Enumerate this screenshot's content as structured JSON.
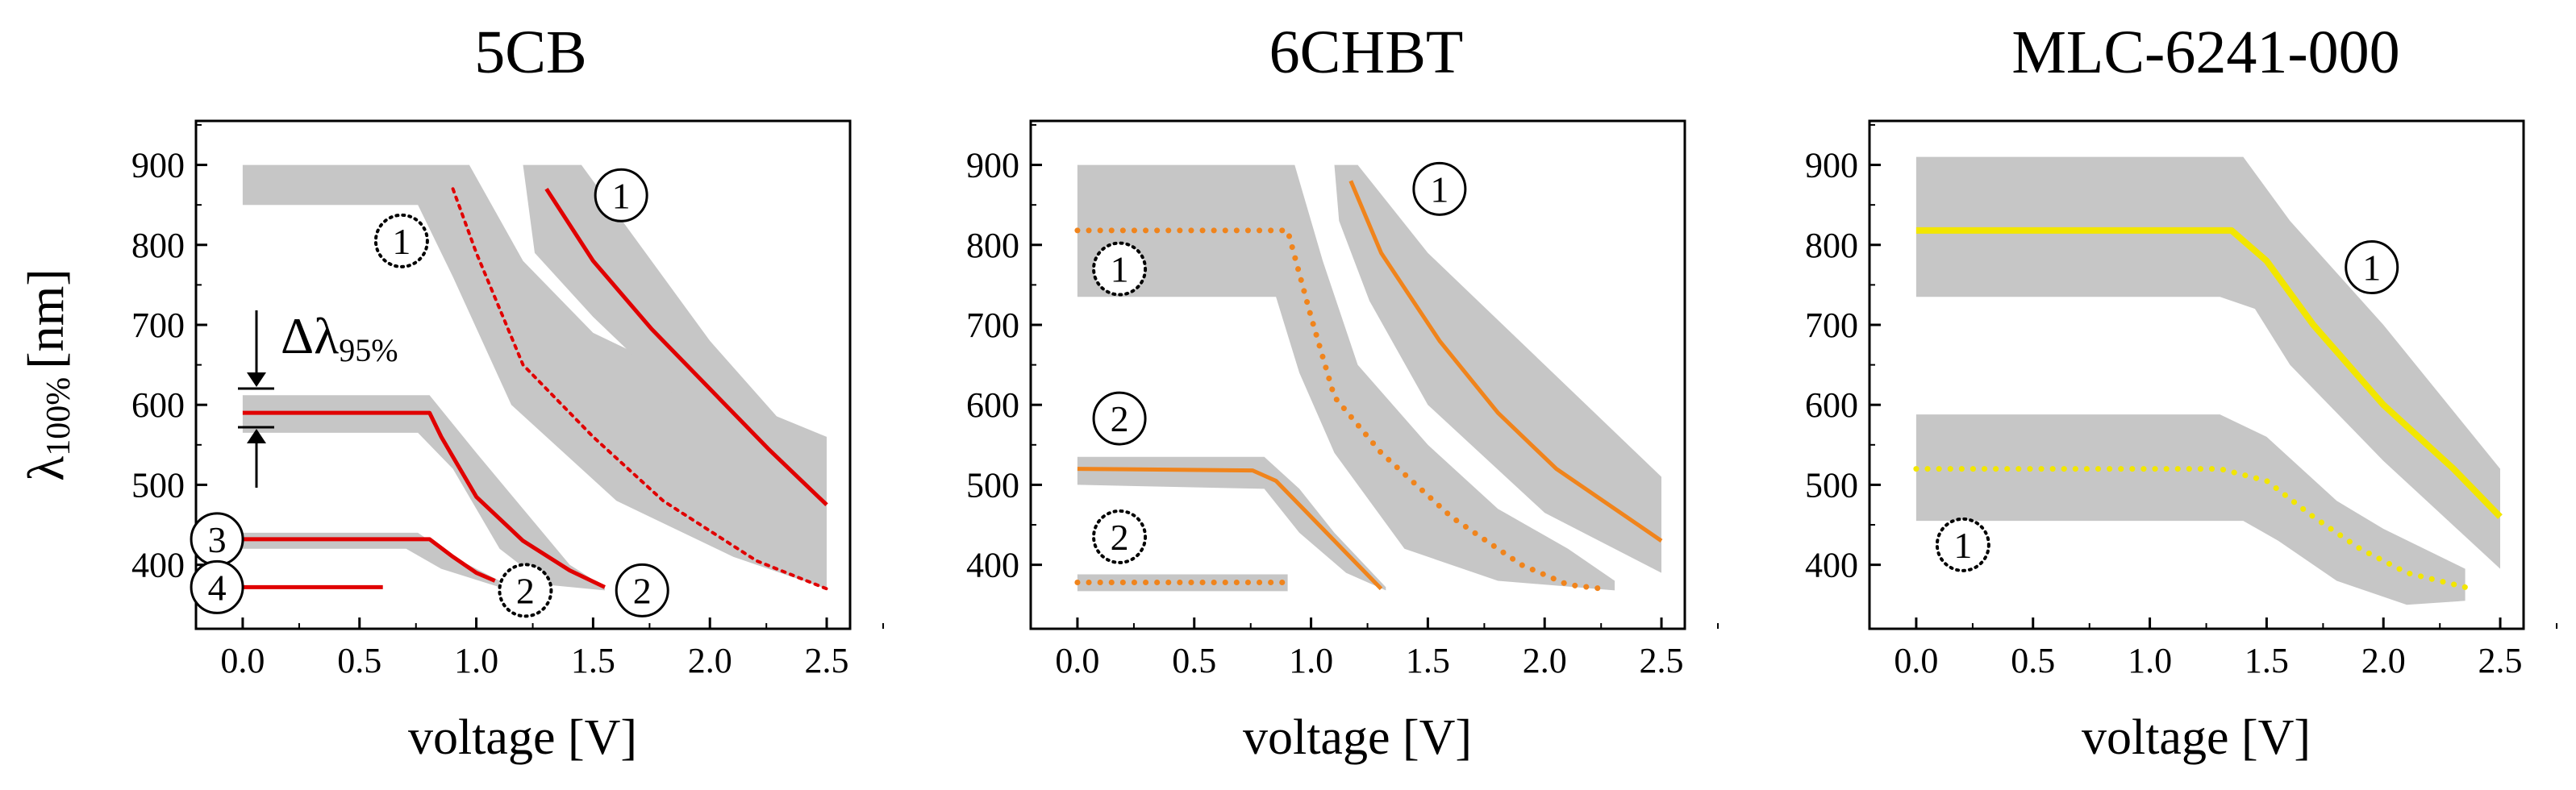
{
  "figure": {
    "ylabel_main": "λ",
    "ylabel_sub": "100%",
    "ylabel_unit": "[nm]"
  },
  "chart_data": [
    {
      "type": "line",
      "title": "5CB",
      "xlabel": "voltage [V]",
      "ylabel": "λ100% [nm]",
      "xlim": [
        -0.2,
        2.6
      ],
      "ylim": [
        320,
        955
      ],
      "xticks": [
        "0.0",
        "0.5",
        "1.0",
        "1.5",
        "2.0",
        "2.5"
      ],
      "yticks": [
        "400",
        "500",
        "600",
        "700",
        "800",
        "900"
      ],
      "bands": [
        {
          "upper": [
            [
              0.0,
              900
            ],
            [
              0.97,
              900
            ],
            [
              1.2,
              780
            ],
            [
              1.5,
              690
            ],
            [
              2.0,
              620
            ],
            [
              2.5,
              560
            ]
          ],
          "lower": [
            [
              2.5,
              370
            ],
            [
              2.1,
              410
            ],
            [
              1.6,
              480
            ],
            [
              1.15,
              600
            ],
            [
              0.9,
              760
            ],
            [
              0.75,
              850
            ],
            [
              0.0,
              850
            ]
          ]
        },
        {
          "upper": [
            [
              1.2,
              900
            ],
            [
              1.45,
              900
            ],
            [
              1.7,
              800
            ],
            [
              2.0,
              680
            ],
            [
              2.5,
              515
            ]
          ],
          "lower": [
            [
              2.5,
              440
            ],
            [
              2.0,
              570
            ],
            [
              1.5,
              710
            ],
            [
              1.25,
              790
            ]
          ]
        },
        {
          "upper": [
            [
              0.0,
              612
            ],
            [
              0.8,
              612
            ],
            [
              1.0,
              540
            ],
            [
              1.2,
              470
            ],
            [
              1.4,
              400
            ],
            [
              1.55,
              372
            ]
          ],
          "lower": [
            [
              1.55,
              368
            ],
            [
              1.3,
              375
            ],
            [
              1.1,
              420
            ],
            [
              0.9,
              520
            ],
            [
              0.75,
              565
            ],
            [
              0.0,
              565
            ]
          ]
        },
        {
          "upper": [
            [
              0.0,
              440
            ],
            [
              0.75,
              440
            ],
            [
              0.9,
              410
            ],
            [
              1.1,
              380
            ]
          ],
          "lower": [
            [
              1.1,
              372
            ],
            [
              0.85,
              395
            ],
            [
              0.7,
              420
            ],
            [
              0.0,
              420
            ]
          ]
        }
      ],
      "series": [
        {
          "name": "2",
          "color": "#e00000",
          "style": "solid",
          "points": [
            [
              0.0,
              590
            ],
            [
              0.8,
              590
            ],
            [
              0.85,
              560
            ],
            [
              1.0,
              485
            ],
            [
              1.2,
              430
            ],
            [
              1.4,
              393
            ],
            [
              1.55,
              372
            ]
          ]
        },
        {
          "name": "1",
          "color": "#e00000",
          "style": "solid",
          "points": [
            [
              1.3,
              870
            ],
            [
              1.5,
              780
            ],
            [
              1.75,
              695
            ],
            [
              2.0,
              620
            ],
            [
              2.25,
              545
            ],
            [
              2.5,
              475
            ]
          ]
        },
        {
          "name": "1 (dotted)",
          "color": "#e00000",
          "style": "dotted",
          "points": [
            [
              0.9,
              870
            ],
            [
              1.0,
              790
            ],
            [
              1.2,
              650
            ],
            [
              1.5,
              560
            ],
            [
              1.8,
              480
            ],
            [
              2.2,
              405
            ],
            [
              2.5,
              370
            ]
          ]
        },
        {
          "name": "3",
          "color": "#e00000",
          "style": "solid",
          "points": [
            [
              0.0,
              432
            ],
            [
              0.8,
              432
            ],
            [
              0.9,
              410
            ],
            [
              1.0,
              390
            ],
            [
              1.08,
              380
            ]
          ]
        },
        {
          "name": "4",
          "color": "#e00000",
          "style": "solid",
          "points": [
            [
              0.0,
              372
            ],
            [
              0.6,
              372
            ]
          ]
        }
      ],
      "annotations": [
        {
          "label": "1",
          "style": "solid",
          "x": 1.62,
          "y": 862
        },
        {
          "label": "1",
          "style": "dotted",
          "x": 0.68,
          "y": 805
        },
        {
          "label": "2",
          "style": "solid",
          "x": 1.71,
          "y": 368
        },
        {
          "label": "2",
          "style": "dotted",
          "x": 1.21,
          "y": 368
        },
        {
          "label": "3",
          "style": "solid",
          "x": -0.11,
          "y": 432
        },
        {
          "label": "4",
          "style": "solid",
          "x": -0.11,
          "y": 372
        }
      ],
      "delta_label": "Δλ",
      "delta_sub": "95%"
    },
    {
      "type": "line",
      "title": "6CHBT",
      "xlabel": "voltage [V]",
      "ylabel": "",
      "xlim": [
        -0.2,
        2.6
      ],
      "ylim": [
        320,
        955
      ],
      "xticks": [
        "0.0",
        "0.5",
        "1.0",
        "1.5",
        "2.0",
        "2.5"
      ],
      "yticks": [
        "400",
        "500",
        "600",
        "700",
        "800",
        "900"
      ],
      "bands": [
        {
          "upper": [
            [
              0.0,
              900
            ],
            [
              0.93,
              900
            ],
            [
              1.05,
              780
            ],
            [
              1.2,
              650
            ],
            [
              1.5,
              550
            ],
            [
              1.8,
              470
            ],
            [
              2.1,
              420
            ],
            [
              2.3,
              380
            ]
          ],
          "lower": [
            [
              2.3,
              368
            ],
            [
              1.8,
              380
            ],
            [
              1.4,
              420
            ],
            [
              1.1,
              540
            ],
            [
              0.95,
              640
            ],
            [
              0.85,
              735
            ],
            [
              0.0,
              735
            ]
          ]
        },
        {
          "upper": [
            [
              1.1,
              900
            ],
            [
              1.2,
              900
            ],
            [
              1.5,
              790
            ],
            [
              2.0,
              650
            ],
            [
              2.5,
              510
            ]
          ],
          "lower": [
            [
              2.5,
              390
            ],
            [
              2.0,
              465
            ],
            [
              1.5,
              600
            ],
            [
              1.25,
              730
            ],
            [
              1.12,
              830
            ]
          ]
        },
        {
          "upper": [
            [
              0.0,
              535
            ],
            [
              0.8,
              535
            ],
            [
              0.95,
              495
            ],
            [
              1.1,
              440
            ],
            [
              1.32,
              372
            ]
          ],
          "lower": [
            [
              1.32,
              368
            ],
            [
              1.15,
              390
            ],
            [
              0.95,
              440
            ],
            [
              0.8,
              495
            ],
            [
              0.0,
              500
            ]
          ]
        },
        {
          "upper": [
            [
              0.0,
              388
            ],
            [
              0.9,
              388
            ]
          ],
          "lower": [
            [
              0.9,
              367
            ],
            [
              0.0,
              367
            ]
          ]
        }
      ],
      "series": [
        {
          "name": "1 (dotted)",
          "color": "#f0841c",
          "style": "dotted",
          "points": [
            [
              0.0,
              818
            ],
            [
              0.9,
              818
            ],
            [
              1.0,
              710
            ],
            [
              1.1,
              610
            ],
            [
              1.3,
              540
            ],
            [
              1.6,
              460
            ],
            [
              1.9,
              400
            ],
            [
              2.1,
              375
            ],
            [
              2.25,
              370
            ]
          ]
        },
        {
          "name": "1",
          "color": "#f0841c",
          "style": "solid",
          "points": [
            [
              1.17,
              880
            ],
            [
              1.3,
              790
            ],
            [
              1.55,
              680
            ],
            [
              1.8,
              590
            ],
            [
              2.05,
              520
            ],
            [
              2.3,
              470
            ],
            [
              2.5,
              430
            ]
          ]
        },
        {
          "name": "2",
          "color": "#f0841c",
          "style": "solid",
          "points": [
            [
              0.0,
              520
            ],
            [
              0.75,
              518
            ],
            [
              0.85,
              505
            ],
            [
              1.0,
              460
            ],
            [
              1.15,
              415
            ],
            [
              1.3,
              370
            ]
          ]
        },
        {
          "name": "2 (dotted)",
          "color": "#f0841c",
          "style": "dotted",
          "points": [
            [
              0.0,
              378
            ],
            [
              0.88,
              378
            ]
          ]
        }
      ],
      "annotations": [
        {
          "label": "1",
          "style": "solid",
          "x": 1.55,
          "y": 870
        },
        {
          "label": "1",
          "style": "dotted",
          "x": 0.18,
          "y": 770
        },
        {
          "label": "2",
          "style": "solid",
          "x": 0.18,
          "y": 583
        },
        {
          "label": "2",
          "style": "dotted",
          "x": 0.18,
          "y": 435
        }
      ]
    },
    {
      "type": "line",
      "title": "MLC-6241-000",
      "xlabel": "voltage [V]",
      "ylabel": "",
      "xlim": [
        -0.2,
        2.6
      ],
      "ylim": [
        320,
        955
      ],
      "xticks": [
        "0.0",
        "0.5",
        "1.0",
        "1.5",
        "2.0",
        "2.5"
      ],
      "yticks": [
        "400",
        "500",
        "600",
        "700",
        "800",
        "900"
      ],
      "bands": [
        {
          "upper": [
            [
              0.0,
              910
            ],
            [
              1.4,
              910
            ],
            [
              1.6,
              830
            ],
            [
              2.0,
              700
            ],
            [
              2.5,
              520
            ]
          ],
          "lower": [
            [
              2.5,
              395
            ],
            [
              2.0,
              530
            ],
            [
              1.6,
              650
            ],
            [
              1.45,
              720
            ],
            [
              1.3,
              735
            ],
            [
              0.0,
              735
            ]
          ]
        },
        {
          "upper": [
            [
              0.0,
              588
            ],
            [
              1.3,
              588
            ],
            [
              1.5,
              560
            ],
            [
              1.8,
              480
            ],
            [
              2.0,
              445
            ],
            [
              2.35,
              395
            ]
          ],
          "lower": [
            [
              2.35,
              355
            ],
            [
              2.1,
              350
            ],
            [
              1.8,
              380
            ],
            [
              1.55,
              430
            ],
            [
              1.4,
              455
            ],
            [
              0.0,
              455
            ]
          ]
        }
      ],
      "series": [
        {
          "name": "1",
          "color": "#f2e600",
          "style": "solid",
          "points": [
            [
              0.0,
              818
            ],
            [
              1.35,
              818
            ],
            [
              1.5,
              780
            ],
            [
              1.7,
              700
            ],
            [
              2.0,
              600
            ],
            [
              2.3,
              520
            ],
            [
              2.5,
              460
            ]
          ]
        },
        {
          "name": "1 (dotted)",
          "color": "#f2e600",
          "style": "dotted",
          "points": [
            [
              0.0,
              520
            ],
            [
              1.3,
              520
            ],
            [
              1.5,
              505
            ],
            [
              1.7,
              460
            ],
            [
              1.9,
              420
            ],
            [
              2.1,
              390
            ],
            [
              2.35,
              372
            ]
          ]
        }
      ],
      "annotations": [
        {
          "label": "1",
          "style": "solid",
          "x": 1.95,
          "y": 772
        },
        {
          "label": "1",
          "style": "dotted",
          "x": 0.2,
          "y": 425
        }
      ]
    }
  ]
}
